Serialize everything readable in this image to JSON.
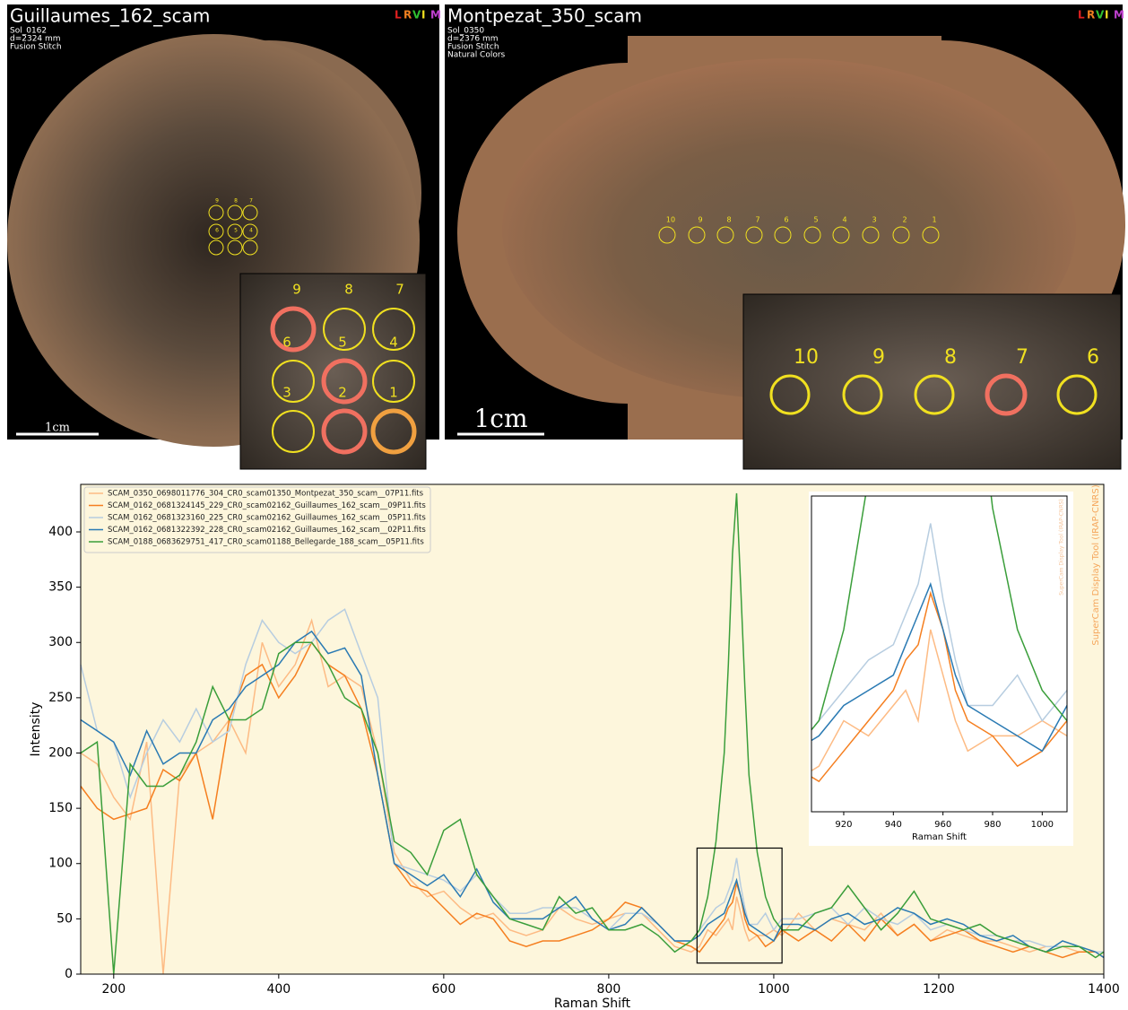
{
  "panels": [
    {
      "title": "Guillaumes_162_scam",
      "info": [
        "Sol_0162",
        "d=2324 mm",
        "Fusion Stitch"
      ],
      "logo": [
        "L",
        "R",
        "V",
        "I",
        "M"
      ],
      "scale": "1cm",
      "spot_labels": [
        "9",
        "8",
        "7",
        "6",
        "5",
        "4",
        "3",
        "2",
        "1"
      ]
    },
    {
      "title": "Montpezat_350_scam",
      "info": [
        "Sol_0350",
        "d=2376 mm",
        "Fusion Stitch",
        "Natural Colors"
      ],
      "logo": [
        "L",
        "R",
        "V",
        "I",
        "M"
      ],
      "scale": "1cm",
      "spot_labels": [
        "10",
        "9",
        "8",
        "7",
        "6",
        "5",
        "4",
        "3",
        "2",
        "1"
      ]
    }
  ],
  "chart_data": [
    {
      "type": "line",
      "x_label": "Raman Shift",
      "y_label": "Intensity",
      "watermark": "SuperCam Display Tool (IRAP-CNRS)",
      "xlim": [
        160,
        1400
      ],
      "ylim": [
        0,
        443
      ],
      "xticks": [
        200,
        400,
        600,
        800,
        1000,
        1200,
        1400
      ],
      "yticks": [
        0,
        50,
        100,
        150,
        200,
        250,
        300,
        350,
        400
      ],
      "legend": "upper left",
      "x": [
        160,
        180,
        200,
        220,
        240,
        260,
        280,
        300,
        320,
        340,
        360,
        380,
        400,
        420,
        440,
        460,
        480,
        500,
        520,
        540,
        560,
        580,
        600,
        620,
        640,
        660,
        680,
        700,
        720,
        740,
        760,
        780,
        800,
        820,
        840,
        860,
        880,
        900,
        910,
        920,
        930,
        940,
        945,
        950,
        955,
        960,
        965,
        970,
        980,
        990,
        1000,
        1010,
        1030,
        1050,
        1070,
        1090,
        1110,
        1130,
        1150,
        1170,
        1190,
        1210,
        1230,
        1250,
        1270,
        1290,
        1310,
        1330,
        1350,
        1370,
        1390,
        1400
      ],
      "series": [
        {
          "name": "SCAM_0350_0698011776_304_CR0_scam01350_Montpezat_350_scam__07P11.fits",
          "color": "#fdbb84",
          "values": [
            200,
            190,
            160,
            140,
            210,
            0,
            180,
            200,
            210,
            230,
            200,
            300,
            260,
            280,
            320,
            260,
            270,
            260,
            200,
            110,
            85,
            70,
            75,
            60,
            50,
            55,
            40,
            35,
            40,
            60,
            50,
            45,
            50,
            55,
            55,
            40,
            25,
            20,
            25,
            40,
            35,
            45,
            50,
            40,
            70,
            55,
            40,
            30,
            35,
            35,
            40,
            35,
            55,
            40,
            50,
            45,
            40,
            55,
            35,
            45,
            30,
            40,
            35,
            30,
            30,
            25,
            20,
            25,
            25,
            20,
            20,
            15
          ]
        },
        {
          "name": "SCAM_0162_0681324145_229_CR0_scam02162_Guillaumes_162_scam__09P11.fits",
          "color": "#f57f20",
          "values": [
            170,
            150,
            140,
            145,
            150,
            185,
            175,
            200,
            140,
            230,
            270,
            280,
            250,
            270,
            300,
            280,
            270,
            240,
            180,
            100,
            80,
            75,
            60,
            45,
            55,
            50,
            30,
            25,
            30,
            30,
            35,
            40,
            50,
            65,
            60,
            45,
            30,
            25,
            20,
            30,
            40,
            50,
            60,
            65,
            82,
            70,
            50,
            40,
            35,
            25,
            30,
            40,
            30,
            40,
            30,
            45,
            30,
            50,
            35,
            45,
            30,
            35,
            40,
            30,
            25,
            20,
            25,
            20,
            15,
            20,
            20,
            20
          ]
        },
        {
          "name": "SCAM_0162_0681323160_225_CR0_scam02162_Guillaumes_162_scam__05P11.fits",
          "color": "#b7cde0",
          "values": [
            280,
            220,
            210,
            160,
            200,
            230,
            210,
            240,
            210,
            220,
            280,
            320,
            300,
            290,
            300,
            320,
            330,
            290,
            250,
            100,
            95,
            90,
            85,
            75,
            90,
            70,
            55,
            55,
            60,
            60,
            60,
            50,
            40,
            55,
            55,
            45,
            30,
            30,
            40,
            50,
            60,
            65,
            75,
            85,
            105,
            80,
            60,
            45,
            45,
            55,
            40,
            50,
            50,
            55,
            60,
            45,
            60,
            50,
            45,
            55,
            40,
            45,
            40,
            35,
            35,
            30,
            30,
            25,
            25,
            25,
            20,
            20
          ]
        },
        {
          "name": "SCAM_0162_0681322392_228_CR0_scam02162_Guillaumes_162_scam__02P11.fits",
          "color": "#2a7ab3",
          "values": [
            230,
            220,
            210,
            180,
            220,
            190,
            200,
            200,
            230,
            240,
            260,
            270,
            280,
            300,
            310,
            290,
            295,
            270,
            180,
            100,
            90,
            80,
            90,
            70,
            95,
            65,
            50,
            50,
            50,
            60,
            70,
            50,
            40,
            45,
            60,
            45,
            30,
            30,
            35,
            45,
            50,
            55,
            65,
            75,
            85,
            70,
            55,
            45,
            40,
            35,
            30,
            45,
            45,
            40,
            50,
            55,
            45,
            50,
            60,
            55,
            45,
            50,
            45,
            35,
            30,
            35,
            25,
            20,
            30,
            25,
            20,
            15
          ]
        },
        {
          "name": "SCAM_0188_0683629751_417_CR0_scam01188_Bellegarde_188_scam__05P11.fits",
          "color": "#3a9e3a",
          "values": [
            200,
            210,
            0,
            190,
            170,
            170,
            180,
            210,
            260,
            230,
            230,
            240,
            290,
            300,
            300,
            280,
            250,
            240,
            200,
            120,
            110,
            90,
            130,
            140,
            90,
            70,
            50,
            45,
            40,
            70,
            55,
            60,
            40,
            40,
            45,
            35,
            20,
            30,
            40,
            70,
            120,
            200,
            280,
            380,
            435,
            350,
            260,
            180,
            110,
            70,
            50,
            40,
            40,
            55,
            60,
            80,
            60,
            40,
            55,
            75,
            50,
            45,
            40,
            45,
            35,
            30,
            25,
            20,
            25,
            25,
            15,
            20
          ]
        }
      ]
    },
    {
      "type": "line",
      "x_label": "Raman Shift",
      "xlim": [
        907,
        1010
      ],
      "ylim": [
        10,
        114
      ],
      "xticks": [
        920,
        940,
        960,
        980,
        1000
      ]
    }
  ]
}
